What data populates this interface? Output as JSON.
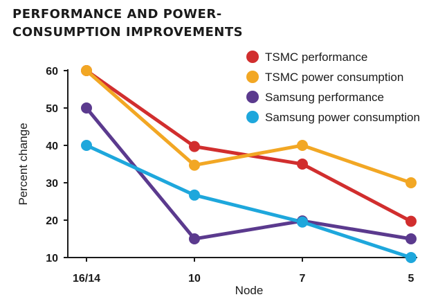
{
  "chart_data": {
    "type": "line",
    "title_lines": [
      "PERFORMANCE AND POWER-",
      "CONSUMPTION IMPROVEMENTS"
    ],
    "xlabel": "Node",
    "ylabel": "Percent change",
    "categories": [
      "16/14",
      "10",
      "7",
      "5"
    ],
    "ylim": [
      10,
      60
    ],
    "yticks": [
      10,
      20,
      30,
      40,
      50,
      60
    ],
    "grid": false,
    "legend_position": "top-right",
    "series": [
      {
        "name": "TSMC performance",
        "color": "#d12e2e",
        "values": [
          60,
          39.7,
          35,
          19.7
        ]
      },
      {
        "name": "TSMC power consumption",
        "color": "#f2a724",
        "values": [
          60,
          34.7,
          40,
          30
        ]
      },
      {
        "name": "Samsung performance",
        "color": "#5b3a8e",
        "values": [
          50,
          15,
          19.8,
          15
        ]
      },
      {
        "name": "Samsung power consumption",
        "color": "#1ea7dc",
        "values": [
          40,
          26.7,
          19.5,
          10
        ]
      }
    ]
  }
}
